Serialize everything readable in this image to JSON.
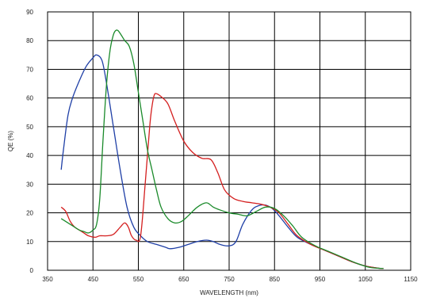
{
  "chart_data": {
    "type": "line",
    "title": "",
    "xlabel": "WAVELENGTH (nm)",
    "ylabel": "QE (%)",
    "xlim": [
      350,
      1150
    ],
    "ylim": [
      0,
      90
    ],
    "xticks": [
      350,
      450,
      550,
      650,
      750,
      850,
      950,
      1050,
      1150
    ],
    "yticks": [
      0,
      10,
      20,
      30,
      40,
      50,
      60,
      70,
      80,
      90
    ],
    "grid": true,
    "legend": "none",
    "series": [
      {
        "color": "#1f3fa6",
        "x": [
          380,
          385,
          395,
          405,
          420,
          435,
          450,
          458,
          470,
          480,
          495,
          510,
          525,
          540,
          555,
          570,
          590,
          610,
          620,
          640,
          660,
          680,
          700,
          715,
          730,
          750,
          765,
          780,
          800,
          815,
          830,
          845,
          860,
          880,
          900,
          930,
          960,
          990,
          1020,
          1050,
          1080,
          1090
        ],
        "y": [
          35,
          42,
          54,
          60,
          66,
          71,
          74,
          75,
          73,
          65,
          50,
          35,
          22,
          15,
          12,
          10,
          9,
          8,
          7.5,
          8,
          9,
          10,
          10.5,
          10,
          9,
          8.5,
          10,
          16,
          21,
          22.5,
          22.7,
          21.5,
          19,
          15,
          11.5,
          9,
          7,
          5,
          3,
          1.5,
          0.7,
          0.6
        ]
      },
      {
        "color": "#d41f1f",
        "x": [
          380,
          390,
          400,
          410,
          420,
          430,
          440,
          455,
          465,
          480,
          495,
          510,
          520,
          528,
          535,
          545,
          555,
          565,
          575,
          580,
          585,
          590,
          600,
          615,
          630,
          650,
          670,
          690,
          710,
          725,
          740,
          760,
          780,
          800,
          820,
          840,
          860,
          880,
          900,
          930,
          960,
          990,
          1020,
          1050,
          1080,
          1090
        ],
        "y": [
          22,
          20.5,
          17,
          15,
          14,
          13,
          12,
          11.5,
          12,
          12,
          12.5,
          15,
          16.5,
          15,
          12,
          10.5,
          12,
          30,
          50,
          57,
          61,
          61.5,
          60.5,
          58,
          52,
          45,
          41,
          39,
          38.5,
          34,
          28,
          25,
          24,
          23.5,
          23,
          22,
          20,
          16,
          12,
          9,
          7,
          5,
          3,
          1.5,
          0.7,
          0.6
        ]
      },
      {
        "color": "#1a8a2a",
        "x": [
          380,
          390,
          400,
          410,
          420,
          430,
          440,
          450,
          458,
          465,
          472,
          480,
          488,
          495,
          500,
          505,
          512,
          520,
          530,
          540,
          550,
          560,
          570,
          580,
          590,
          600,
          615,
          630,
          645,
          660,
          680,
          700,
          715,
          730,
          750,
          770,
          790,
          810,
          830,
          850,
          870,
          890,
          910,
          940,
          970,
          1000,
          1030,
          1060,
          1090
        ],
        "y": [
          18,
          17,
          16,
          15,
          14,
          13.5,
          13,
          14,
          16,
          25,
          45,
          65,
          77,
          82,
          83.5,
          83.5,
          82,
          80,
          78,
          72,
          62,
          52,
          42,
          35,
          28,
          22,
          18,
          16.5,
          17,
          19,
          22,
          23.5,
          22,
          21,
          20,
          19.5,
          19,
          20.5,
          22,
          21.5,
          19,
          15.5,
          11.5,
          8.5,
          6.5,
          4.5,
          2.5,
          1,
          0.6
        ]
      }
    ]
  }
}
